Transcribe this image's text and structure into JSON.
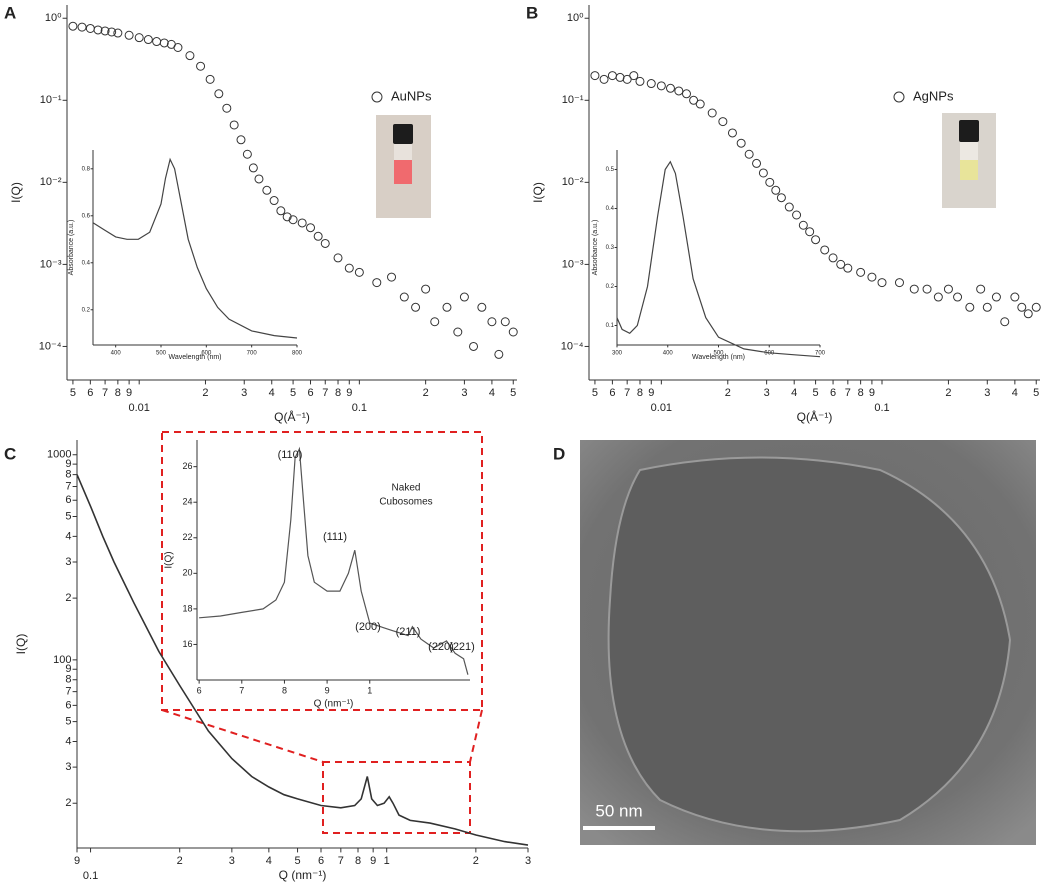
{
  "chart_data": [
    {
      "type": "scatter",
      "panel": "A",
      "xlabel": "Q(Å⁻¹)",
      "ylabel": "I(Q)",
      "xlog": true,
      "ylog": true,
      "xlim": [
        0.0047,
        0.52
      ],
      "ylim": [
        3.9e-05,
        1.45
      ],
      "xticks": [
        {
          "value": 0.005,
          "label": "5"
        },
        {
          "value": 0.006,
          "label": "6"
        },
        {
          "value": 0.007,
          "label": "7"
        },
        {
          "value": 0.008,
          "label": "8"
        },
        {
          "value": 0.009,
          "label": "9"
        },
        0.01,
        {
          "value": 0.02,
          "label": "2"
        },
        {
          "value": 0.03,
          "label": "3"
        },
        {
          "value": 0.04,
          "label": "4"
        },
        {
          "value": 0.05,
          "label": "5"
        },
        {
          "value": 0.06,
          "label": "6"
        },
        {
          "value": 0.07,
          "label": "7"
        },
        {
          "value": 0.08,
          "label": "8"
        },
        {
          "value": 0.09,
          "label": "9"
        },
        0.1,
        {
          "value": 0.2,
          "label": "2"
        },
        {
          "value": 0.3,
          "label": "3"
        },
        {
          "value": 0.4,
          "label": "4"
        },
        {
          "value": 0.5,
          "label": "5"
        }
      ],
      "yticks": [
        {
          "value": 1,
          "label": "10⁰"
        },
        {
          "value": 0.1,
          "label": "10⁻¹"
        },
        {
          "value": 0.01,
          "label": "10⁻²"
        },
        {
          "value": 0.001,
          "label": "10⁻³"
        },
        {
          "value": 0.0001,
          "label": "10⁻⁴"
        }
      ],
      "series": [
        {
          "name": "AuNPs",
          "color": "#333333",
          "x": [
            0.005,
            0.0055,
            0.006,
            0.0065,
            0.007,
            0.0075,
            0.008,
            0.009,
            0.01,
            0.011,
            0.012,
            0.013,
            0.014,
            0.015,
            0.017,
            0.019,
            0.021,
            0.023,
            0.025,
            0.027,
            0.029,
            0.031,
            0.033,
            0.035,
            0.038,
            0.041,
            0.044,
            0.047,
            0.05,
            0.055,
            0.06,
            0.065,
            0.07,
            0.08,
            0.09,
            0.1,
            0.12,
            0.14,
            0.16,
            0.18,
            0.2,
            0.22,
            0.25,
            0.28,
            0.3,
            0.33,
            0.36,
            0.4,
            0.43,
            0.46,
            0.5
          ],
          "values": [
            0.8,
            0.78,
            0.75,
            0.72,
            0.7,
            0.68,
            0.66,
            0.62,
            0.58,
            0.55,
            0.52,
            0.5,
            0.48,
            0.44,
            0.35,
            0.26,
            0.18,
            0.12,
            0.08,
            0.05,
            0.033,
            0.022,
            0.015,
            0.011,
            0.008,
            0.006,
            0.0045,
            0.0038,
            0.0035,
            0.0032,
            0.0028,
            0.0022,
            0.0018,
            0.0012,
            0.0009,
            0.0008,
            0.0006,
            0.0007,
            0.0004,
            0.0003,
            0.0005,
            0.0002,
            0.0003,
            0.00015,
            0.0004,
            0.0001,
            0.0003,
            0.0002,
            8e-05,
            0.0002,
            0.00015
          ]
        }
      ],
      "inset": {
        "type": "line",
        "xlabel": "Wavelength (nm)",
        "ylabel": "Absorbance (a.u.)",
        "color": "#444444",
        "xlim": [
          350,
          800
        ],
        "ylim": [
          0.05,
          0.88
        ],
        "xticks": [
          400,
          500,
          600,
          700,
          800
        ],
        "yticks": [
          0.2,
          0.4,
          0.6,
          0.8
        ],
        "x": [
          350,
          375,
          400,
          425,
          450,
          475,
          500,
          510,
          520,
          530,
          545,
          560,
          580,
          600,
          625,
          650,
          700,
          750,
          800
        ],
        "values": [
          0.57,
          0.54,
          0.51,
          0.5,
          0.5,
          0.53,
          0.65,
          0.76,
          0.84,
          0.8,
          0.65,
          0.5,
          0.38,
          0.29,
          0.21,
          0.16,
          0.11,
          0.09,
          0.08
        ]
      }
    },
    {
      "type": "scatter",
      "panel": "B",
      "xlabel": "Q(Å⁻¹)",
      "ylabel": "I(Q)",
      "xlog": true,
      "ylog": true,
      "xlim": [
        0.0047,
        0.52
      ],
      "ylim": [
        3.9e-05,
        1.45
      ],
      "xticks": [
        {
          "value": 0.005,
          "label": "5"
        },
        {
          "value": 0.006,
          "label": "6"
        },
        {
          "value": 0.007,
          "label": "7"
        },
        {
          "value": 0.008,
          "label": "8"
        },
        {
          "value": 0.009,
          "label": "9"
        },
        0.01,
        {
          "value": 0.02,
          "label": "2"
        },
        {
          "value": 0.03,
          "label": "3"
        },
        {
          "value": 0.04,
          "label": "4"
        },
        {
          "value": 0.05,
          "label": "5"
        },
        {
          "value": 0.06,
          "label": "6"
        },
        {
          "value": 0.07,
          "label": "7"
        },
        {
          "value": 0.08,
          "label": "8"
        },
        {
          "value": 0.09,
          "label": "9"
        },
        0.1,
        {
          "value": 0.2,
          "label": "2"
        },
        {
          "value": 0.3,
          "label": "3"
        },
        {
          "value": 0.4,
          "label": "4"
        },
        {
          "value": 0.5,
          "label": "5"
        }
      ],
      "yticks": [
        {
          "value": 1,
          "label": "10⁰"
        },
        {
          "value": 0.1,
          "label": "10⁻¹"
        },
        {
          "value": 0.01,
          "label": "10⁻²"
        },
        {
          "value": 0.001,
          "label": "10⁻³"
        },
        {
          "value": 0.0001,
          "label": "10⁻⁴"
        }
      ],
      "series": [
        {
          "name": "AgNPs",
          "color": "#333333",
          "x": [
            0.005,
            0.0055,
            0.006,
            0.0065,
            0.007,
            0.0075,
            0.008,
            0.009,
            0.01,
            0.011,
            0.012,
            0.013,
            0.014,
            0.015,
            0.017,
            0.019,
            0.021,
            0.023,
            0.025,
            0.027,
            0.029,
            0.031,
            0.033,
            0.035,
            0.038,
            0.041,
            0.044,
            0.047,
            0.05,
            0.055,
            0.06,
            0.065,
            0.07,
            0.08,
            0.09,
            0.1,
            0.12,
            0.14,
            0.16,
            0.18,
            0.2,
            0.22,
            0.25,
            0.28,
            0.3,
            0.33,
            0.36,
            0.4,
            0.43,
            0.46,
            0.5
          ],
          "values": [
            0.2,
            0.18,
            0.2,
            0.19,
            0.18,
            0.2,
            0.17,
            0.16,
            0.15,
            0.14,
            0.13,
            0.12,
            0.1,
            0.09,
            0.07,
            0.055,
            0.04,
            0.03,
            0.022,
            0.017,
            0.013,
            0.01,
            0.008,
            0.0065,
            0.005,
            0.004,
            0.003,
            0.0025,
            0.002,
            0.0015,
            0.0012,
            0.001,
            0.0009,
            0.0008,
            0.0007,
            0.0006,
            0.0006,
            0.0005,
            0.0005,
            0.0004,
            0.0005,
            0.0004,
            0.0003,
            0.0005,
            0.0003,
            0.0004,
            0.0002,
            0.0004,
            0.0003,
            0.00025,
            0.0003
          ]
        }
      ],
      "inset": {
        "type": "line",
        "xlabel": "Wavelength (nm)",
        "ylabel": "Absorbance (a.u.)",
        "color": "#444444",
        "xlim": [
          300,
          700
        ],
        "ylim": [
          0.05,
          0.55
        ],
        "xticks": [
          300,
          400,
          500,
          600,
          700
        ],
        "yticks": [
          0.1,
          0.2,
          0.3,
          0.4,
          0.5
        ],
        "x": [
          300,
          310,
          325,
          340,
          360,
          380,
          395,
          405,
          415,
          430,
          450,
          475,
          500,
          550,
          600,
          650,
          700
        ],
        "values": [
          0.12,
          0.09,
          0.08,
          0.1,
          0.2,
          0.38,
          0.5,
          0.52,
          0.49,
          0.38,
          0.22,
          0.12,
          0.07,
          0.04,
          0.03,
          0.025,
          0.02
        ]
      }
    },
    {
      "type": "line",
      "panel": "C",
      "xlabel": "Q (nm⁻¹)",
      "ylabel": "I(Q)",
      "xlog": true,
      "ylog": true,
      "xlim": [
        0.09,
        3
      ],
      "ylim": [
        12.1,
        1180
      ],
      "xticks": [
        {
          "value": 0.09,
          "label": "9"
        },
        0.1,
        {
          "value": 0.2,
          "label": "2"
        },
        {
          "value": 0.3,
          "label": "3"
        },
        {
          "value": 0.4,
          "label": "4"
        },
        {
          "value": 0.5,
          "label": "5"
        },
        {
          "value": 0.6,
          "label": "6"
        },
        {
          "value": 0.7,
          "label": "7"
        },
        {
          "value": 0.8,
          "label": "8"
        },
        {
          "value": 0.9,
          "label": "9"
        },
        1,
        2,
        3
      ],
      "yticks": [
        1000,
        {
          "value": 900,
          "label": "9"
        },
        {
          "value": 800,
          "label": "8"
        },
        {
          "value": 700,
          "label": "7"
        },
        {
          "value": 600,
          "label": "6"
        },
        {
          "value": 500,
          "label": "5"
        },
        {
          "value": 400,
          "label": "4"
        },
        {
          "value": 300,
          "label": "3"
        },
        {
          "value": 200,
          "label": "2"
        },
        100,
        {
          "value": 90,
          "label": "9"
        },
        {
          "value": 80,
          "label": "8"
        },
        {
          "value": 70,
          "label": "7"
        },
        {
          "value": 60,
          "label": "6"
        },
        {
          "value": 50,
          "label": "5"
        },
        {
          "value": 40,
          "label": "4"
        },
        {
          "value": 30,
          "label": "3"
        },
        {
          "value": 20,
          "label": "2"
        }
      ],
      "series": [
        {
          "color": "#333333",
          "x": [
            0.09,
            0.1,
            0.11,
            0.12,
            0.14,
            0.17,
            0.2,
            0.25,
            0.3,
            0.35,
            0.4,
            0.45,
            0.5,
            0.6,
            0.7,
            0.78,
            0.82,
            0.86,
            0.89,
            0.93,
            0.98,
            1.02,
            1.05,
            1.1,
            1.2,
            1.4,
            1.7,
            2,
            2.5,
            3
          ],
          "values": [
            800,
            560,
            400,
            300,
            190,
            110,
            75,
            45,
            33,
            27,
            24,
            22,
            21,
            19.5,
            19,
            19.5,
            21,
            27,
            21,
            19.5,
            20,
            21.5,
            20,
            17.5,
            16.5,
            16,
            15,
            14,
            13,
            12.5
          ]
        }
      ],
      "inset": {
        "type": "line",
        "xlabel": "Q (nm⁻¹)",
        "ylabel": "I(Q)",
        "color": "#555555",
        "xlim": [
          0.595,
          1.235
        ],
        "ylim": [
          14,
          27.5
        ],
        "xticks": [
          {
            "value": 0.6,
            "label": "6"
          },
          {
            "value": 0.7,
            "label": "7"
          },
          {
            "value": 0.8,
            "label": "8"
          },
          {
            "value": 0.9,
            "label": "9"
          },
          1
        ],
        "yticks": [
          16,
          18,
          20,
          22,
          24,
          26
        ],
        "x": [
          0.6,
          0.65,
          0.7,
          0.75,
          0.78,
          0.8,
          0.815,
          0.825,
          0.835,
          0.845,
          0.855,
          0.87,
          0.9,
          0.93,
          0.95,
          0.965,
          0.98,
          1.0,
          1.05,
          1.09,
          1.1,
          1.12,
          1.15,
          1.18,
          1.2,
          1.22,
          1.23
        ],
        "values": [
          17.5,
          17.6,
          17.8,
          18,
          18.5,
          19.5,
          23,
          26.5,
          27,
          24,
          21,
          19.5,
          19,
          19,
          20,
          21.3,
          19,
          17.2,
          16.8,
          16.5,
          17,
          16.3,
          15.8,
          16.2,
          15.5,
          15.2,
          14.3
        ],
        "annotations": [
          "(110)",
          "(111)",
          "(200)",
          "(211)",
          "(220)",
          "(221)"
        ],
        "legend_lines": [
          "Naked",
          "Cubosomes"
        ]
      }
    },
    {
      "type": "image",
      "panel": "D",
      "scale_bar": "50 nm"
    }
  ]
}
